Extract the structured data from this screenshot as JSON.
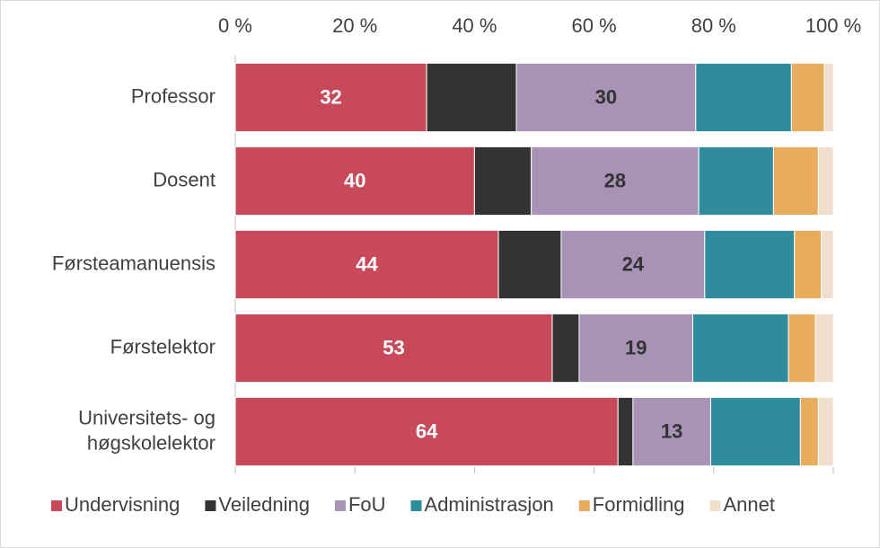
{
  "chart_data": {
    "type": "stacked_barh",
    "categories": [
      "Professor",
      "Dosent",
      "Førsteamanuensis",
      "Førstelektor",
      "Universitets- og\nhøgskolelektor"
    ],
    "series": [
      {
        "name": "Undervisning",
        "color": "#c8495a",
        "label_color": "#ffffff",
        "show_labels": true,
        "values": [
          32,
          40,
          44,
          53,
          64
        ]
      },
      {
        "name": "Veiledning",
        "color": "#333333",
        "values": [
          15,
          9.5,
          10.5,
          4.5,
          2.5
        ]
      },
      {
        "name": "FoU",
        "color": "#a892b5",
        "label_color": "#333333",
        "show_labels": true,
        "values": [
          30,
          28,
          24,
          19,
          13
        ]
      },
      {
        "name": "Administrasjon",
        "color": "#2e8c9c",
        "values": [
          16,
          12.5,
          15,
          16,
          15
        ]
      },
      {
        "name": "Formidling",
        "color": "#e8ac5f",
        "values": [
          5.5,
          7.5,
          4.5,
          4.5,
          3
        ]
      },
      {
        "name": "Annet",
        "color": "#efdfcc",
        "values": [
          1.5,
          2.5,
          2,
          3,
          2.5
        ]
      }
    ],
    "xlim": [
      0,
      100
    ],
    "xticks": [
      {
        "value": 0,
        "label": "0 %"
      },
      {
        "value": 20,
        "label": "20 %"
      },
      {
        "value": 40,
        "label": "40 %"
      },
      {
        "value": 60,
        "label": "60 %"
      },
      {
        "value": 80,
        "label": "80 %"
      },
      {
        "value": 100,
        "label": "100 %"
      }
    ],
    "legend": "bottom"
  }
}
